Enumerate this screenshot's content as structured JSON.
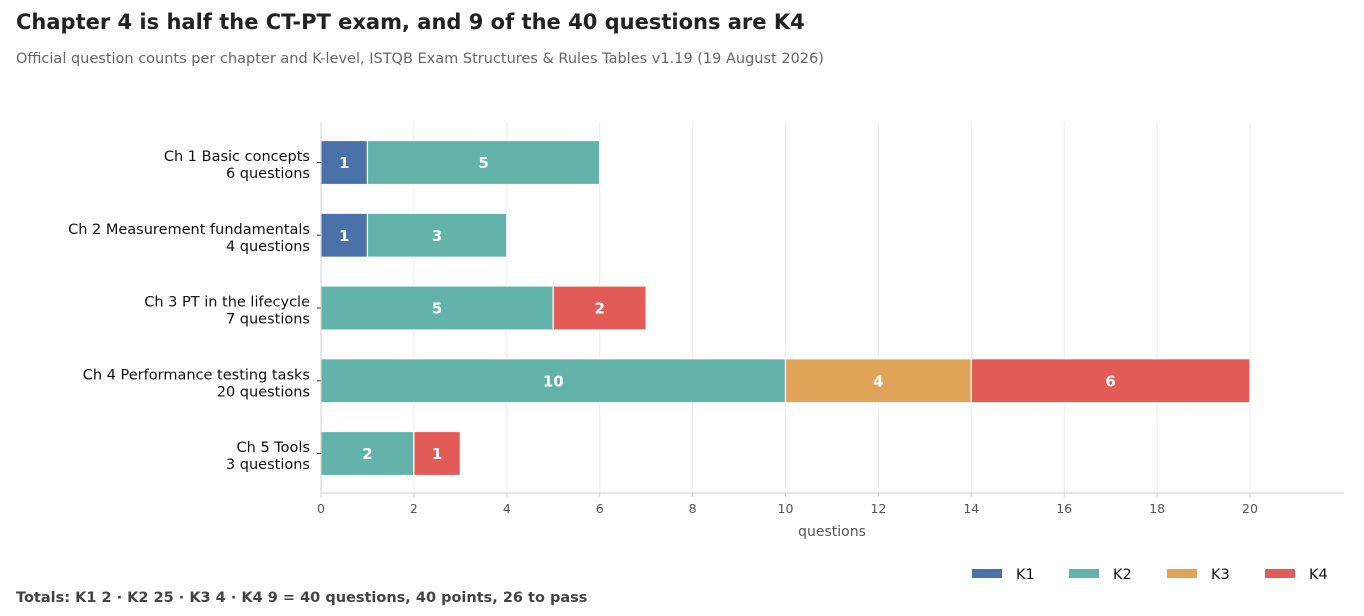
{
  "title": "Chapter 4 is half the CT-PT exam, and 9 of the 40 questions are K4",
  "subtitle": "Official question counts per chapter and K-level, ISTQB Exam Structures & Rules Tables v1.19 (19 August 2026)",
  "footer": "Totals: K1 2  ·  K2 25  ·  K3 4  ·  K4 9  =  40 questions, 40 points, 26 to pass",
  "chart_data": {
    "type": "bar",
    "orientation": "horizontal",
    "stacked": true,
    "categories": [
      {
        "name": "Ch 1  Basic concepts",
        "sub": "6 questions"
      },
      {
        "name": "Ch 2  Measurement fundamentals",
        "sub": "4 questions"
      },
      {
        "name": "Ch 3  PT in the lifecycle",
        "sub": "7 questions"
      },
      {
        "name": "Ch 4  Performance testing tasks",
        "sub": "20 questions"
      },
      {
        "name": "Ch 5  Tools",
        "sub": "3 questions"
      }
    ],
    "series": [
      {
        "name": "K1",
        "color": "#4a72a8",
        "values": [
          1,
          1,
          0,
          0,
          0
        ]
      },
      {
        "name": "K2",
        "color": "#63b3aa",
        "values": [
          5,
          3,
          5,
          10,
          2
        ]
      },
      {
        "name": "K3",
        "color": "#e0a458",
        "values": [
          0,
          0,
          0,
          4,
          0
        ]
      },
      {
        "name": "K4",
        "color": "#e25b57",
        "values": [
          0,
          0,
          2,
          6,
          1
        ]
      }
    ],
    "xlabel": "questions",
    "xlim": [
      0,
      22
    ],
    "xticks": [
      0,
      2,
      4,
      6,
      8,
      10,
      12,
      14,
      16,
      18,
      20
    ],
    "grid": "x",
    "legend": "bottom-right"
  }
}
